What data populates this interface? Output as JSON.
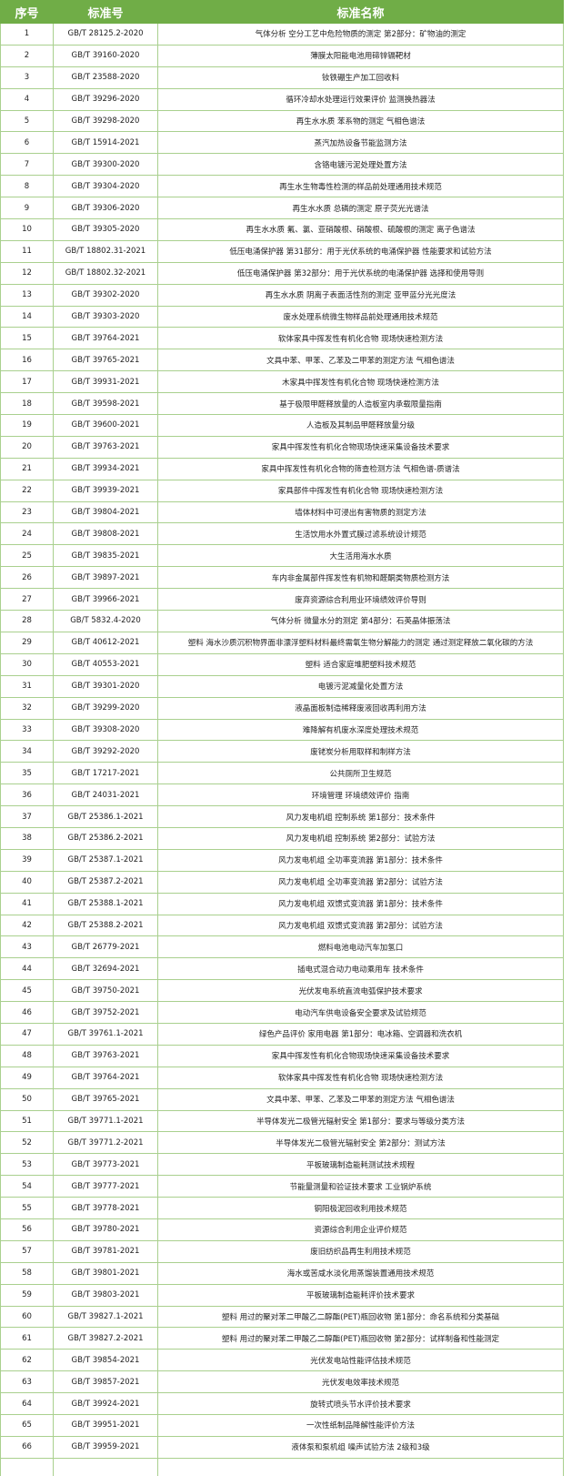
{
  "table": {
    "header": [
      "序号",
      "标准号",
      "标准名称"
    ],
    "rows": [
      [
        "1",
        "GB/T 28125.2-2020",
        "气体分析 空分工艺中危险物质的测定 第2部分：矿物油的测定"
      ],
      [
        "2",
        "GB/T 39160-2020",
        "薄膜太阳能电池用碲锌镉靶材"
      ],
      [
        "3",
        "GB/T 23588-2020",
        "钕铁硼生产加工回收料"
      ],
      [
        "4",
        "GB/T 39296-2020",
        "循环冷却水处理运行效果评价 监测换热器法"
      ],
      [
        "5",
        "GB/T 39298-2020",
        "再生水水质 苯系物的测定 气相色谱法"
      ],
      [
        "6",
        "GB/T 15914-2021",
        "蒸汽加热设备节能监测方法"
      ],
      [
        "7",
        "GB/T 39300-2020",
        "含铬电镀污泥处理处置方法"
      ],
      [
        "8",
        "GB/T 39304-2020",
        "再生水生物毒性检测的样品前处理通用技术规范"
      ],
      [
        "9",
        "GB/T 39306-2020",
        "再生水水质 总磷的测定 原子荧光光谱法"
      ],
      [
        "10",
        "GB/T 39305-2020",
        "再生水水质 氟、氯、亚硝酸根、硝酸根、硫酸根的测定 离子色谱法"
      ],
      [
        "11",
        "GB/T 18802.31-2021",
        "低压电涌保护器 第31部分：用于光伏系统的电涌保护器 性能要求和试验方法"
      ],
      [
        "12",
        "GB/T 18802.32-2021",
        "低压电涌保护器 第32部分：用于光伏系统的电涌保护器 选择和使用导则"
      ],
      [
        "13",
        "GB/T 39302-2020",
        "再生水水质 阴离子表面活性剂的测定 亚甲蓝分光光度法"
      ],
      [
        "14",
        "GB/T 39303-2020",
        "废水处理系统微生物样品前处理通用技术规范"
      ],
      [
        "15",
        "GB/T 39764-2021",
        "软体家具中挥发性有机化合物 现场快速检测方法"
      ],
      [
        "16",
        "GB/T 39765-2021",
        "文具中苯、甲苯、乙苯及二甲苯的测定方法 气相色谱法"
      ],
      [
        "17",
        "GB/T 39931-2021",
        "木家具中挥发性有机化合物 现场快速检测方法"
      ],
      [
        "18",
        "GB/T 39598-2021",
        "基于极限甲醛释放量的人造板室内承载限量指南"
      ],
      [
        "19",
        "GB/T 39600-2021",
        "人造板及其制品甲醛释放量分级"
      ],
      [
        "20",
        "GB/T 39763-2021",
        "家具中挥发性有机化合物现场快速采集设备技术要求"
      ],
      [
        "21",
        "GB/T 39934-2021",
        "家具中挥发性有机化合物的筛查检测方法 气相色谱-质谱法"
      ],
      [
        "22",
        "GB/T 39939-2021",
        "家具部件中挥发性有机化合物 现场快速检测方法"
      ],
      [
        "23",
        "GB/T 39804-2021",
        "墙体材料中可浸出有害物质的测定方法"
      ],
      [
        "24",
        "GB/T 39808-2021",
        "生活饮用水外置式膜过滤系统设计规范"
      ],
      [
        "25",
        "GB/T 39835-2021",
        "大生活用海水水质"
      ],
      [
        "26",
        "GB/T 39897-2021",
        "车内非金属部件挥发性有机物和醛酮类物质检测方法"
      ],
      [
        "27",
        "GB/T 39966-2021",
        "废弃资源综合利用业环境绩效评价导则"
      ],
      [
        "28",
        "GB/T 5832.4-2020",
        "气体分析 微量水分的测定 第4部分：石英晶体振荡法"
      ],
      [
        "29",
        "GB/T 40612-2021",
        "塑料 海水沙质沉积物界面非漂浮塑料材料最终需氧生物分解能力的测定 通过测定释放二氧化碳的方法"
      ],
      [
        "30",
        "GB/T 40553-2021",
        "塑料 适合家庭堆肥塑料技术规范"
      ],
      [
        "31",
        "GB/T 39301-2020",
        "电镀污泥减量化处置方法"
      ],
      [
        "32",
        "GB/T 39299-2020",
        "液晶面板制造稀释废液回收再利用方法"
      ],
      [
        "33",
        "GB/T 39308-2020",
        "难降解有机废水深度处理技术规范"
      ],
      [
        "34",
        "GB/T 39292-2020",
        "废铑炭分析用取样和制样方法"
      ],
      [
        "35",
        "GB/T 17217-2021",
        "公共厕所卫生规范"
      ],
      [
        "36",
        "GB/T 24031-2021",
        "环境管理 环境绩效评价 指南"
      ],
      [
        "37",
        "GB/T 25386.1-2021",
        "风力发电机组 控制系统 第1部分：技术条件"
      ],
      [
        "38",
        "GB/T 25386.2-2021",
        "风力发电机组 控制系统 第2部分：试验方法"
      ],
      [
        "39",
        "GB/T 25387.1-2021",
        "风力发电机组 全功率变流器 第1部分：技术条件"
      ],
      [
        "40",
        "GB/T 25387.2-2021",
        "风力发电机组 全功率变流器 第2部分：试验方法"
      ],
      [
        "41",
        "GB/T 25388.1-2021",
        "风力发电机组 双馈式变流器 第1部分：技术条件"
      ],
      [
        "42",
        "GB/T 25388.2-2021",
        "风力发电机组 双馈式变流器 第2部分：试验方法"
      ],
      [
        "43",
        "GB/T 26779-2021",
        "燃料电池电动汽车加氢口"
      ],
      [
        "44",
        "GB/T 32694-2021",
        "插电式混合动力电动乘用车 技术条件"
      ],
      [
        "45",
        "GB/T 39750-2021",
        "光伏发电系统直流电弧保护技术要求"
      ],
      [
        "46",
        "GB/T 39752-2021",
        "电动汽车供电设备安全要求及试验规范"
      ],
      [
        "47",
        "GB/T 39761.1-2021",
        "绿色产品评价 家用电器 第1部分：电冰箱、空调器和洗衣机"
      ],
      [
        "48",
        "GB/T 39763-2021",
        "家具中挥发性有机化合物现场快速采集设备技术要求"
      ],
      [
        "49",
        "GB/T 39764-2021",
        "软体家具中挥发性有机化合物 现场快速检测方法"
      ],
      [
        "50",
        "GB/T 39765-2021",
        "文具中苯、甲苯、乙苯及二甲苯的测定方法 气相色谱法"
      ],
      [
        "51",
        "GB/T 39771.1-2021",
        "半导体发光二极管光辐射安全 第1部分：要求与等级分类方法"
      ],
      [
        "52",
        "GB/T 39771.2-2021",
        "半导体发光二极管光辐射安全 第2部分：测试方法"
      ],
      [
        "53",
        "GB/T 39773-2021",
        "平板玻璃制造能耗测试技术规程"
      ],
      [
        "54",
        "GB/T 39777-2021",
        "节能量测量和验证技术要求 工业锅炉系统"
      ],
      [
        "55",
        "GB/T 39778-2021",
        "铜阳极泥回收利用技术规范"
      ],
      [
        "56",
        "GB/T 39780-2021",
        "资源综合利用企业评价规范"
      ],
      [
        "57",
        "GB/T 39781-2021",
        "废旧纺织品再生利用技术规范"
      ],
      [
        "58",
        "GB/T 39801-2021",
        "海水或苦咸水淡化用蒸馏装置通用技术规范"
      ],
      [
        "59",
        "GB/T 39803-2021",
        "平板玻璃制造能耗评价技术要求"
      ],
      [
        "60",
        "GB/T 39827.1-2021",
        "塑料 用过的聚对苯二甲酸乙二醇酯(PET)瓶回收物 第1部分：命名系统和分类基础"
      ],
      [
        "61",
        "GB/T 39827.2-2021",
        "塑料 用过的聚对苯二甲酸乙二醇酯(PET)瓶回收物 第2部分：试样制备和性能测定"
      ],
      [
        "62",
        "GB/T 39854-2021",
        "光伏发电站性能评估技术规范"
      ],
      [
        "63",
        "GB/T 39857-2021",
        "光伏发电效率技术规范"
      ],
      [
        "64",
        "GB/T 39924-2021",
        "旋转式喷头节水评价技术要求"
      ],
      [
        "65",
        "GB/T 39951-2021",
        "一次性纸制品降解性能评价方法"
      ],
      [
        "66",
        "GB/T 39959-2021",
        "液体泵和泵机组 噪声试验方法 2级和3级"
      ]
    ]
  }
}
